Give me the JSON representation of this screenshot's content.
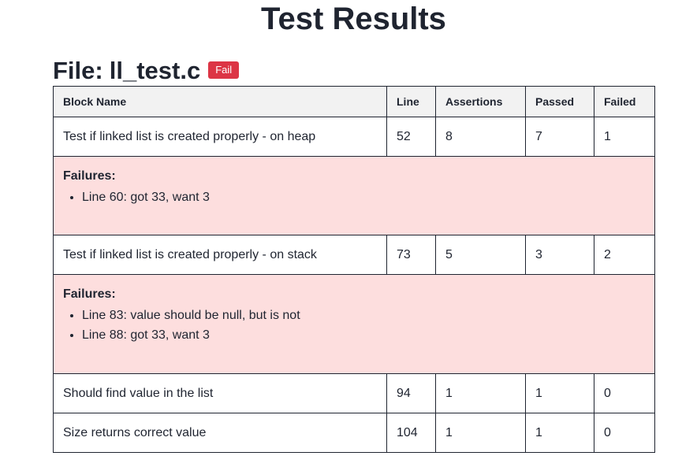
{
  "page": {
    "title": "Test Results"
  },
  "file": {
    "label": "File:",
    "name": "ll_test.c",
    "status": "Fail",
    "status_color": "#dc3545"
  },
  "table": {
    "headers": {
      "block_name": "Block Name",
      "line": "Line",
      "assertions": "Assertions",
      "passed": "Passed",
      "failed": "Failed"
    },
    "rows": [
      {
        "block_name": "Test if linked list is created properly - on heap",
        "line": "52",
        "assertions": "8",
        "passed": "7",
        "failed": "1",
        "failures_title": "Failures:",
        "failures": [
          "Line 60: got 33, want 3"
        ]
      },
      {
        "block_name": "Test if linked list is created properly - on stack",
        "line": "73",
        "assertions": "5",
        "passed": "3",
        "failed": "2",
        "failures_title": "Failures:",
        "failures": [
          "Line 83: value should be null, but is not",
          "Line 88: got 33, want 3"
        ]
      },
      {
        "block_name": "Should find value in the list",
        "line": "94",
        "assertions": "1",
        "passed": "1",
        "failed": "0"
      },
      {
        "block_name": "Size returns correct value",
        "line": "104",
        "assertions": "1",
        "passed": "1",
        "failed": "0"
      }
    ]
  },
  "colors": {
    "failure_background": "#fddede",
    "header_background": "#f2f2f2"
  }
}
